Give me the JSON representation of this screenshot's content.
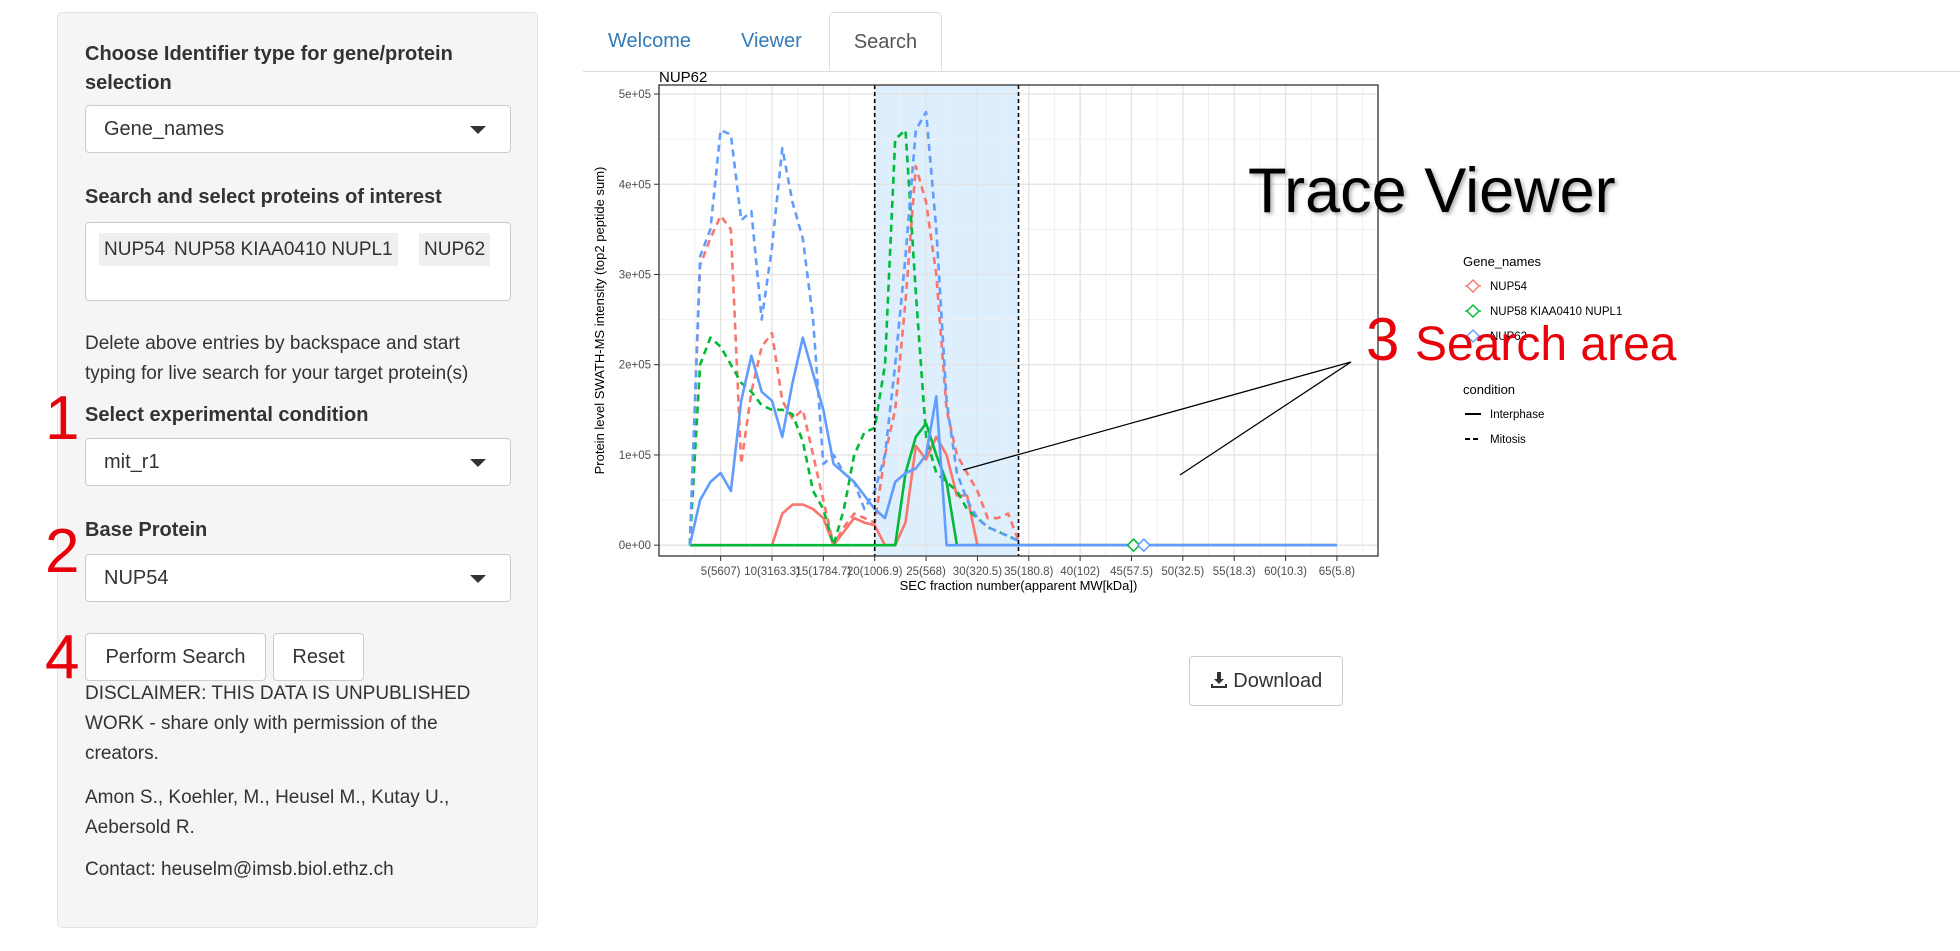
{
  "sidebar": {
    "identifier_label": "Choose Identifier type for gene/protein selection",
    "identifier_value": "Gene_names",
    "search_label": "Search and select proteins of interest",
    "selected_proteins": [
      "NUP54",
      "NUP58 KIAA0410 NUPL1",
      "NUP62"
    ],
    "help_text": "Delete above entries by backspace and start typing for live search for your target protein(s)",
    "condition_label": "Select experimental condition",
    "condition_value": "mit_r1",
    "base_label": "Base Protein",
    "base_value": "NUP54",
    "perform_label": "Perform Search",
    "reset_label": "Reset",
    "disclaimer": "DISCLAIMER: THIS DATA IS UNPUBLISHED WORK - share only with permission of the creators.",
    "authors": "Amon S., Koehler, M., Heusel M., Kutay U., Aebersold R.",
    "contact": "Contact: heuselm@imsb.biol.ethz.ch"
  },
  "annotations": {
    "n1": "1",
    "n2": "2",
    "n3": "3",
    "n4": "4",
    "search_area": "Search area",
    "trace_viewer": "Trace Viewer",
    "color": "#e8000b"
  },
  "tabs": [
    {
      "label": "Welcome",
      "active": false
    },
    {
      "label": "Viewer",
      "active": false
    },
    {
      "label": "Search",
      "active": true
    }
  ],
  "download_label": "Download",
  "download_icon": "download-icon",
  "colors": {
    "NUP54": "#f8766d",
    "NUP58": "#00ba38",
    "NUP62": "#619cff",
    "search_area": "#ddeefc"
  },
  "chart_data": {
    "type": "line",
    "title": "NUP62",
    "xlabel": "SEC fraction number(apparent MW[kDa])",
    "ylabel": "Protein level SWATH-MS intensity (top2 peptide sum)",
    "xlim": [
      -1,
      69
    ],
    "ylim": [
      -12000,
      510000
    ],
    "x_ticks": [
      5,
      10,
      15,
      20,
      25,
      30,
      35,
      40,
      45,
      50,
      55,
      60,
      65
    ],
    "x_tick_labels": [
      "5(5607)",
      "10(3163.3)",
      "15(1784.7)",
      "20(1006.9)",
      "25(568)",
      "30(320.5)",
      "35(180.8)",
      "40(102)",
      "45(57.5)",
      "50(32.5)",
      "55(18.3)",
      "60(10.3)",
      "65(5.8)"
    ],
    "y_ticks": [
      0,
      100000,
      200000,
      300000,
      400000,
      500000
    ],
    "y_tick_labels": [
      "0e+00",
      "1e+05",
      "2e+05",
      "3e+05",
      "4e+05",
      "5e+05"
    ],
    "grid": true,
    "search_area": [
      20,
      34
    ],
    "legend": {
      "gene_title": "Gene_names",
      "genes": [
        "NUP54",
        "NUP58 KIAA0410 NUPL1",
        "NUP62"
      ],
      "cond_title": "condition",
      "conditions": [
        "Interphase",
        "Mitosis"
      ]
    },
    "series": [
      {
        "name": "NUP54",
        "condition": "Interphase",
        "x": [
          2,
          9,
          10,
          11,
          12,
          13,
          14,
          15,
          16,
          17,
          18,
          19,
          20,
          21,
          22,
          23,
          24,
          25,
          26,
          27,
          28,
          29,
          30,
          31,
          32,
          33,
          34,
          35,
          40,
          45,
          50,
          55,
          60,
          65
        ],
        "y": [
          0,
          0,
          0,
          35000,
          45000,
          45000,
          40000,
          30000,
          0,
          15000,
          30000,
          25000,
          22000,
          0,
          0,
          25000,
          110000,
          95000,
          120000,
          100000,
          55000,
          55000,
          0,
          0,
          0,
          0,
          0,
          0,
          0,
          0,
          0,
          0,
          0,
          0
        ]
      },
      {
        "name": "NUP54",
        "condition": "Mitosis",
        "x": [
          2,
          3,
          4,
          5,
          6,
          7,
          8,
          9,
          10,
          11,
          12,
          13,
          14,
          15,
          16,
          17,
          18,
          19,
          20,
          21,
          22,
          23,
          24,
          25,
          26,
          27,
          28,
          29,
          30,
          31,
          32,
          33,
          34
        ],
        "y": [
          0,
          310000,
          340000,
          365000,
          350000,
          90000,
          170000,
          220000,
          235000,
          160000,
          140000,
          150000,
          100000,
          50000,
          0,
          20000,
          35000,
          30000,
          25000,
          100000,
          150000,
          270000,
          420000,
          380000,
          300000,
          150000,
          100000,
          80000,
          60000,
          30000,
          30000,
          35000,
          5000
        ]
      },
      {
        "name": "NUP58 KIAA0410 NUPL1",
        "condition": "Interphase",
        "x": [
          2,
          5,
          10,
          15,
          20,
          21,
          22,
          23,
          24,
          25,
          26,
          27,
          28,
          29,
          30,
          35,
          40,
          45,
          50,
          55,
          60,
          65
        ],
        "y": [
          0,
          0,
          0,
          0,
          0,
          0,
          0,
          80000,
          120000,
          135000,
          100000,
          70000,
          0,
          0,
          0,
          0,
          0,
          0,
          0,
          0,
          0,
          0
        ]
      },
      {
        "name": "NUP58 KIAA0410 NUPL1",
        "condition": "Mitosis",
        "x": [
          2,
          3,
          4,
          5,
          6,
          7,
          8,
          9,
          10,
          11,
          12,
          13,
          14,
          15,
          16,
          17,
          18,
          19,
          20,
          21,
          22,
          23,
          24,
          25,
          26,
          27,
          28,
          29,
          30,
          31,
          32,
          33,
          34
        ],
        "y": [
          0,
          200000,
          230000,
          220000,
          200000,
          180000,
          170000,
          155000,
          150000,
          150000,
          145000,
          115000,
          60000,
          40000,
          0,
          40000,
          100000,
          125000,
          130000,
          200000,
          450000,
          460000,
          280000,
          120000,
          80000,
          70000,
          60000,
          40000,
          30000,
          20000,
          15000,
          10000,
          5000
        ]
      },
      {
        "name": "NUP62",
        "condition": "Interphase",
        "x": [
          2,
          3,
          4,
          5,
          6,
          7,
          8,
          9,
          10,
          11,
          12,
          13,
          14,
          15,
          16,
          17,
          18,
          19,
          20,
          21,
          22,
          23,
          24,
          25,
          26,
          27,
          28,
          29,
          30,
          31,
          32,
          33,
          34,
          35,
          40,
          45,
          50,
          55,
          60,
          65
        ],
        "y": [
          0,
          50000,
          70000,
          80000,
          60000,
          160000,
          210000,
          170000,
          160000,
          120000,
          180000,
          230000,
          190000,
          150000,
          90000,
          80000,
          70000,
          55000,
          40000,
          30000,
          70000,
          80000,
          85000,
          100000,
          165000,
          0,
          0,
          0,
          0,
          0,
          0,
          0,
          0,
          0,
          0,
          0,
          0,
          0,
          0,
          0
        ]
      },
      {
        "name": "NUP62",
        "condition": "Mitosis",
        "x": [
          2,
          3,
          4,
          5,
          6,
          7,
          8,
          9,
          10,
          11,
          12,
          13,
          14,
          15,
          16,
          17,
          18,
          19,
          20,
          21,
          22,
          23,
          24,
          25,
          26,
          27,
          28,
          29,
          30,
          31,
          32,
          33,
          34
        ],
        "y": [
          0,
          320000,
          350000,
          460000,
          455000,
          360000,
          370000,
          250000,
          330000,
          440000,
          380000,
          340000,
          250000,
          90000,
          100000,
          80000,
          70000,
          40000,
          60000,
          100000,
          200000,
          320000,
          460000,
          480000,
          350000,
          160000,
          80000,
          50000,
          30000,
          20000,
          15000,
          10000,
          5000
        ]
      }
    ],
    "markers": [
      {
        "name": "NUP58 KIAA0410 NUPL1",
        "x": 45.2,
        "y": 0
      },
      {
        "name": "NUP62",
        "x": 46.2,
        "y": 0
      }
    ]
  }
}
